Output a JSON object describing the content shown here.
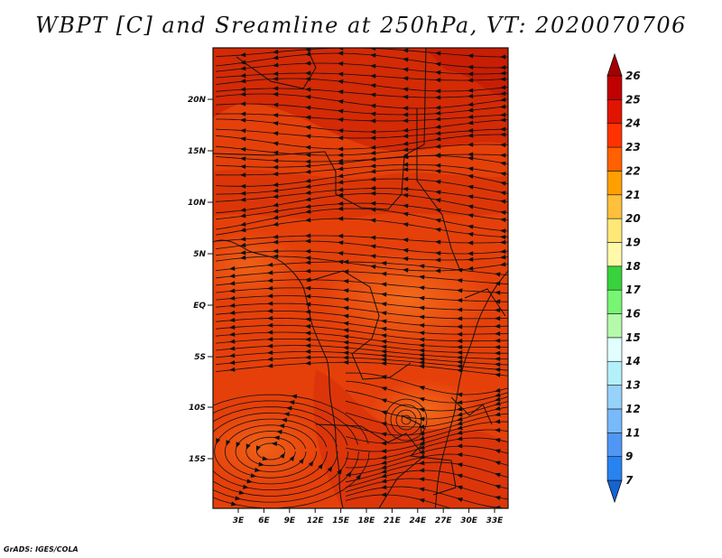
{
  "title": "WBPT [C] and Sreamline at 250hPa, VT: 2020070706",
  "footer": "GrADS: IGES/COLA",
  "map": {
    "lat_labels": [
      "20N",
      "15N",
      "10N",
      "5N",
      "EQ",
      "5S",
      "10S",
      "15S"
    ],
    "lon_labels": [
      "3E",
      "6E",
      "9E",
      "12E",
      "15E",
      "18E",
      "21E",
      "24E",
      "27E",
      "30E",
      "33E"
    ],
    "field_colors": {
      "deep": "#c81e05",
      "main": "#e5400a",
      "light": "#ef5a14",
      "warm": "#f36c1c"
    }
  },
  "colorbar": {
    "labels": [
      "7",
      "9",
      "11",
      "12",
      "13",
      "14",
      "15",
      "16",
      "17",
      "18",
      "19",
      "20",
      "21",
      "22",
      "23",
      "24",
      "25",
      "26"
    ],
    "colors": [
      "#1464d2",
      "#2882f0",
      "#5096f5",
      "#78b9fa",
      "#96d2fa",
      "#b4f0fa",
      "#e1ffff",
      "#b4faaa",
      "#78f573",
      "#37d23c",
      "#fffaaa",
      "#ffe878",
      "#ffc03c",
      "#ffa000",
      "#ff6000",
      "#ff3200",
      "#e11400",
      "#c00000",
      "#a50000"
    ]
  }
}
